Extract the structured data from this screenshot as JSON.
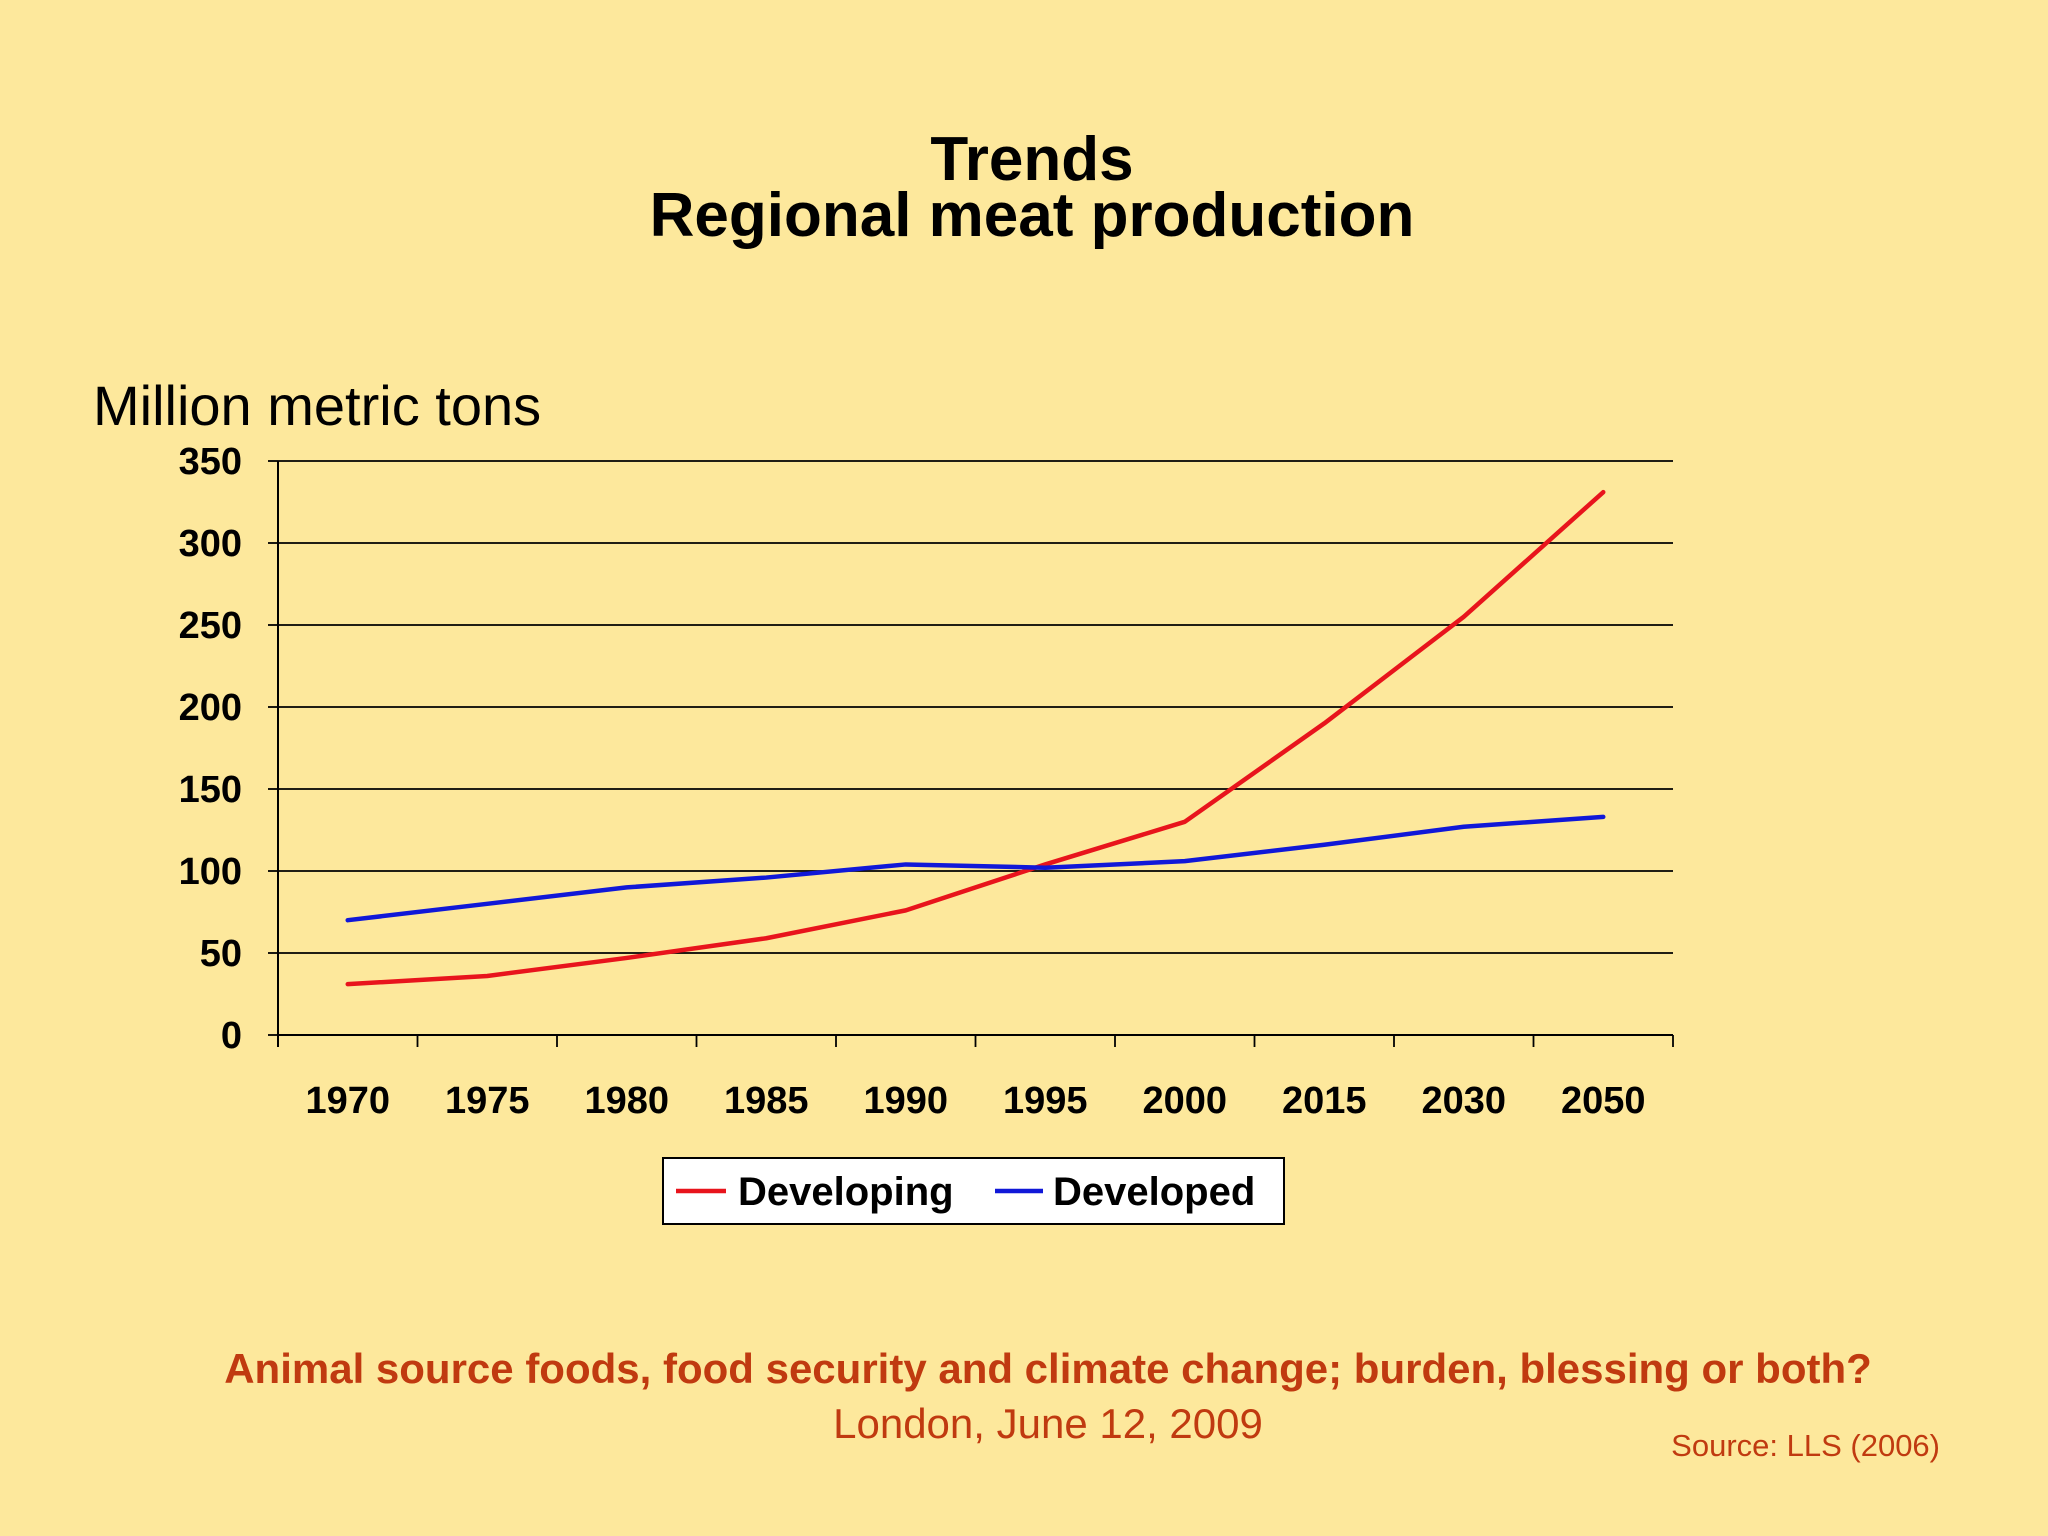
{
  "slide": {
    "title_line1": "Trends",
    "title_line2": "Regional meat production",
    "footer_title": "Animal source foods, food security and climate change; burden, blessing or both?",
    "footer_subtitle": "London, June 12, 2009",
    "source": "Source:  LLS (2006)",
    "background_color": "#fde89c",
    "footer_color": "#c03a10"
  },
  "chart_data": {
    "type": "line",
    "title": "",
    "xlabel": "",
    "ylabel": "Million metric tons",
    "categories": [
      "1970",
      "1975",
      "1980",
      "1985",
      "1990",
      "1995",
      "2000",
      "2015",
      "2030",
      "2050"
    ],
    "series": [
      {
        "name": "Developing",
        "color": "#e8141c",
        "values": [
          31,
          36,
          47,
          59,
          76,
          104,
          130,
          190,
          255,
          331
        ]
      },
      {
        "name": "Developed",
        "color": "#1018d8",
        "values": [
          70,
          80,
          90,
          96,
          104,
          102,
          106,
          116,
          127,
          133
        ]
      }
    ],
    "ylim": [
      0,
      350
    ],
    "yticks": [
      0,
      50,
      100,
      150,
      200,
      250,
      300,
      350
    ],
    "grid": true,
    "legend_position": "bottom"
  }
}
